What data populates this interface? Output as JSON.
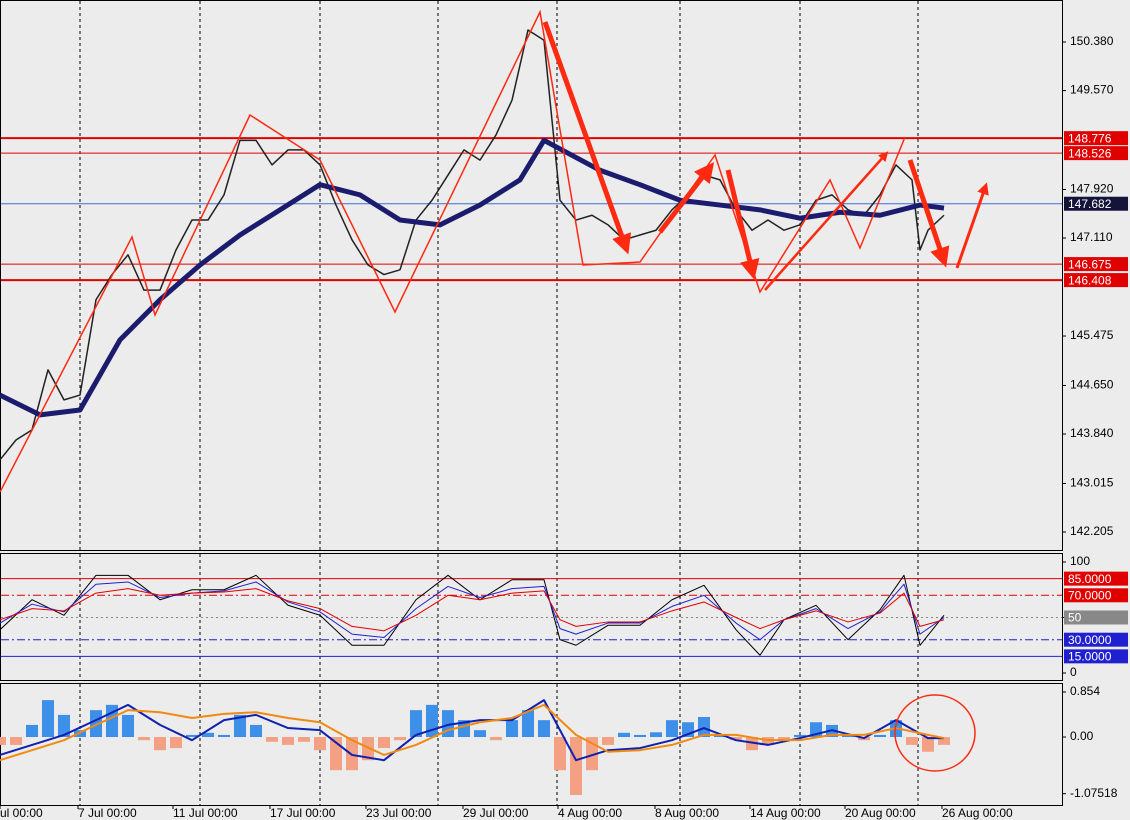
{
  "chart_data": [
    {
      "type": "line",
      "xlim": [
        0,
        265.5
      ],
      "ylim": [
        141.905,
        151.081
      ],
      "yticks": [
        {
          "value": 150.38,
          "label": "150.380"
        },
        {
          "value": 149.57,
          "label": "149.570"
        },
        {
          "value": 147.92,
          "label": "147.920"
        },
        {
          "value": 147.11,
          "label": "147.110"
        },
        145.475,
        {
          "value": 144.65,
          "label": "144.650"
        },
        {
          "value": 143.84,
          "label": "143.840"
        },
        143.015,
        142.205
      ],
      "vgrid": [
        20,
        50,
        80,
        109.5,
        139.25,
        170,
        200,
        229.5
      ],
      "hlines": [
        {
          "value": 148.776,
          "color": "#e00000",
          "style": "thick"
        },
        {
          "value": 148.526,
          "color": "#e00000",
          "style": "solid"
        },
        {
          "value": 147.682,
          "color": "#3f6fd8",
          "style": "solid",
          "box": "#14143a"
        },
        {
          "value": 146.675,
          "color": "#e00000",
          "style": "solid"
        },
        {
          "value": 146.408,
          "color": "#e00000",
          "style": "thick"
        }
      ],
      "series": [
        {
          "color": "#222222",
          "width": 1.5,
          "x": [
            0,
            4,
            8,
            12,
            16,
            20,
            24,
            28,
            32,
            36,
            40,
            44,
            48,
            52,
            56,
            60,
            64,
            68,
            72,
            76,
            80,
            84,
            88,
            92,
            96,
            100,
            104,
            108,
            112,
            116,
            120,
            124,
            128,
            132,
            136,
            140,
            144,
            148,
            152,
            156,
            160,
            164,
            168,
            172,
            176,
            180,
            184,
            188,
            192,
            196,
            200,
            204,
            208,
            212,
            216,
            220,
            224,
            228,
            230,
            232,
            236
          ],
          "values": [
            143.41,
            143.74,
            143.91,
            144.91,
            144.41,
            144.49,
            146.08,
            146.5,
            146.83,
            146.24,
            146.24,
            146.91,
            147.41,
            147.41,
            147.83,
            148.74,
            148.74,
            148.33,
            148.58,
            148.58,
            148.33,
            147.66,
            147.08,
            146.66,
            146.5,
            146.58,
            147.41,
            147.74,
            148.16,
            148.58,
            148.41,
            148.83,
            149.41,
            150.58,
            150.41,
            147.74,
            147.41,
            147.49,
            147.33,
            147.08,
            147.16,
            147.24,
            147.58,
            147.83,
            148.16,
            148.08,
            147.58,
            147.24,
            147.41,
            147.24,
            147.33,
            147.74,
            147.83,
            147.58,
            147.49,
            147.83,
            148.33,
            148.08,
            146.91,
            147.24,
            147.49
          ]
        },
        {
          "color": "#1c1c6e",
          "width": 5,
          "x": [
            0,
            10,
            20,
            30,
            40,
            50,
            60,
            70,
            80,
            90,
            100,
            110,
            120,
            130,
            136,
            150,
            160,
            170,
            180,
            190,
            200,
            210,
            220,
            230,
            236
          ],
          "values": [
            144.49,
            144.16,
            144.24,
            145.41,
            146.08,
            146.66,
            147.16,
            147.58,
            148.0,
            147.83,
            147.41,
            147.33,
            147.66,
            148.08,
            148.74,
            148.24,
            148.0,
            147.74,
            147.66,
            147.58,
            147.44,
            147.54,
            147.49,
            147.66,
            147.61
          ]
        }
      ]
    },
    {
      "type": "line",
      "xlim": [
        0,
        265.5
      ],
      "ylim": [
        -6.3,
        108.1
      ],
      "yticks": [
        100,
        50,
        0
      ],
      "hlines": [
        {
          "value": 85,
          "label": "85.0000",
          "color": "#e00000",
          "style": "solid",
          "box": "#e00000"
        },
        {
          "value": 70,
          "label": "70.0000",
          "color": "#e00000",
          "style": "dashdot",
          "box": "#e00000"
        },
        {
          "value": 50,
          "color": "#888888",
          "style": "dotted"
        },
        {
          "value": 30,
          "label": "30.0000",
          "color": "#2020d0",
          "style": "dashdot",
          "box": "#2020d0"
        },
        {
          "value": 15,
          "label": "15.0000",
          "color": "#2020d0",
          "style": "solid",
          "box": "#2020d0"
        }
      ],
      "x": [
        0,
        8,
        16,
        24,
        32,
        40,
        48,
        56,
        64,
        72,
        80,
        88,
        96,
        104,
        112,
        120,
        128,
        136,
        140,
        144,
        152,
        160,
        168,
        176,
        184,
        190,
        196,
        204,
        212,
        220,
        226,
        230,
        236
      ],
      "series": [
        {
          "color": "#000000",
          "width": 1,
          "values": [
            39,
            66,
            52,
            88,
            88,
            66,
            75,
            75,
            88,
            61,
            52,
            25,
            25,
            66,
            88,
            66,
            84,
            84,
            30,
            25,
            43,
            43,
            66,
            79,
            39,
            16,
            48,
            61,
            30,
            57,
            88,
            25,
            52
          ]
        },
        {
          "color": "#2020d0",
          "width": 1,
          "values": [
            45,
            62,
            55,
            80,
            82,
            68,
            72,
            74,
            82,
            64,
            55,
            35,
            32,
            58,
            78,
            68,
            76,
            78,
            40,
            35,
            45,
            45,
            60,
            70,
            45,
            30,
            48,
            58,
            40,
            55,
            80,
            35,
            50
          ]
        },
        {
          "color": "#e00000",
          "width": 1,
          "values": [
            48,
            58,
            56,
            72,
            76,
            70,
            72,
            73,
            76,
            65,
            58,
            42,
            38,
            52,
            70,
            66,
            72,
            74,
            48,
            42,
            46,
            46,
            56,
            64,
            50,
            40,
            48,
            56,
            46,
            54,
            72,
            42,
            48
          ]
        }
      ]
    },
    {
      "type": "combo",
      "xlim": [
        0,
        265.5
      ],
      "ylim": [
        -1.29,
        1.025
      ],
      "yticks": [
        0.854,
        {
          "value": 0,
          "label": "0.00"
        },
        -1.07518
      ],
      "xticks": [
        {
          "value": 0,
          "label": "ul 00:00"
        },
        {
          "value": 19.5,
          "label": "7 Jul 00:00"
        },
        {
          "value": 43.25,
          "label": "11 Jul 00:00"
        },
        {
          "value": 67.5,
          "label": "17 Jul 00:00"
        },
        {
          "value": 91.5,
          "label": "23 Jul 00:00"
        },
        {
          "value": 115.75,
          "label": "29 Jul 00:00"
        },
        {
          "value": 139.5,
          "label": "4 Aug 00:00"
        },
        {
          "value": 163.75,
          "label": "8 Aug 00:00"
        },
        {
          "value": 187.5,
          "label": "14 Aug 00:00"
        },
        {
          "value": 211.25,
          "label": "20 Aug 00:00"
        },
        {
          "value": 235.5,
          "label": "26 Aug 00:00"
        }
      ],
      "histogram": {
        "color": "#3d8fe8",
        "negative_color": "#f3a083",
        "x": [
          0,
          4,
          8,
          12,
          16,
          20,
          24,
          28,
          32,
          36,
          40,
          44,
          48,
          52,
          56,
          60,
          64,
          68,
          72,
          76,
          80,
          84,
          88,
          92,
          96,
          100,
          104,
          108,
          112,
          116,
          120,
          124,
          128,
          132,
          136,
          140,
          144,
          148,
          152,
          156,
          160,
          164,
          168,
          172,
          176,
          180,
          184,
          188,
          192,
          196,
          200,
          204,
          208,
          212,
          216,
          220,
          224,
          228,
          232,
          236
        ],
        "values": [
          -0.15,
          -0.15,
          0.23,
          0.7,
          0.42,
          0.13,
          0.51,
          0.61,
          0.42,
          -0.06,
          -0.25,
          -0.21,
          0.04,
          0.08,
          0.04,
          0.42,
          0.23,
          -0.09,
          -0.15,
          -0.09,
          -0.25,
          -0.63,
          -0.63,
          -0.44,
          -0.21,
          -0.06,
          0.51,
          0.61,
          0.51,
          0.32,
          0.13,
          -0.06,
          0.32,
          0.51,
          0.32,
          -0.63,
          -1.1,
          -0.63,
          -0.15,
          0.08,
          0.04,
          0.09,
          0.32,
          0.28,
          0.38,
          0.04,
          -0.06,
          -0.25,
          -0.15,
          -0.06,
          0.04,
          0.28,
          0.23,
          0.04,
          -0.06,
          0.04,
          0.32,
          -0.15,
          -0.28,
          -0.15
        ]
      },
      "x": [
        0,
        8,
        16,
        24,
        32,
        40,
        48,
        56,
        64,
        72,
        80,
        88,
        96,
        104,
        112,
        120,
        128,
        136,
        144,
        152,
        160,
        168,
        176,
        184,
        192,
        200,
        208,
        216,
        224,
        232,
        236
      ],
      "series": [
        {
          "color": "#1020b0",
          "width": 2,
          "values": [
            -0.34,
            -0.15,
            0.04,
            0.32,
            0.61,
            0.23,
            -0.06,
            0.32,
            0.42,
            0.17,
            0.13,
            -0.34,
            -0.44,
            0.04,
            0.23,
            0.32,
            0.32,
            0.7,
            -0.44,
            -0.25,
            -0.21,
            -0.06,
            0.17,
            -0.06,
            -0.15,
            -0.02,
            0.13,
            -0.02,
            0.32,
            -0.02,
            -0.02
          ]
        },
        {
          "color": "#f08a10",
          "width": 2,
          "values": [
            -0.44,
            -0.25,
            -0.06,
            0.23,
            0.51,
            0.47,
            0.36,
            0.44,
            0.47,
            0.36,
            0.28,
            -0.06,
            -0.34,
            -0.15,
            0.13,
            0.28,
            0.36,
            0.61,
            0.04,
            -0.28,
            -0.25,
            -0.15,
            0.04,
            0.04,
            -0.06,
            -0.06,
            0.04,
            0.04,
            0.17,
            0.04,
            -0.02
          ]
        }
      ]
    }
  ]
}
